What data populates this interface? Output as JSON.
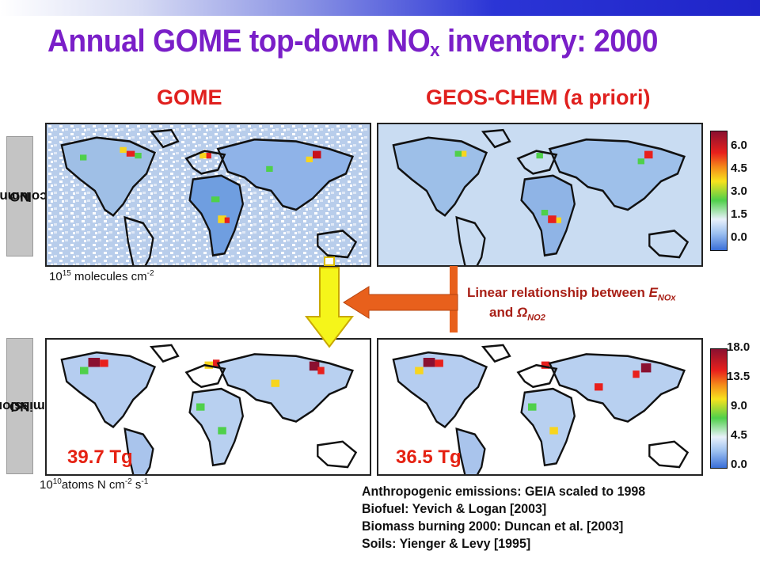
{
  "title": {
    "main": "Annual GOME top-down NO",
    "sub": "x",
    "rest": " inventory: 2000"
  },
  "columns": {
    "left": "GOME",
    "right": "GEOS-CHEM (a priori)"
  },
  "rows": {
    "top": {
      "pre": "NO",
      "sub": "2",
      "post": " columns"
    },
    "bottom": {
      "pre": "NO",
      "sub": "x",
      "post": " emissions"
    }
  },
  "units": {
    "top": {
      "base": "10",
      "exp": "15",
      "text": " molecules cm",
      "exp2": "-2"
    },
    "bottom": {
      "base": "10",
      "exp": "10",
      "text": "atoms N cm",
      "exp2": "-2",
      "text2": " s",
      "exp3": "-1"
    }
  },
  "totals": {
    "gome": "39.7 Tg",
    "geoschem": "36.5 Tg"
  },
  "colorbar_top": {
    "ticks": [
      "6.0",
      "4.5",
      "3.0",
      "1.5",
      "0.0"
    ]
  },
  "colorbar_bottom": {
    "ticks": [
      "18.0",
      "13.5",
      "9.0",
      "4.5",
      "0.0"
    ]
  },
  "annotation": {
    "line1": "Linear relationship between ",
    "E": "E",
    "Esub": "NOx",
    "line2": "and ",
    "omega": "Ω",
    "omegasub": "NO2"
  },
  "sources": [
    "Anthropogenic emissions: GEIA scaled to 1998",
    "Biofuel: Yevich & Logan [2003]",
    "Biomass burning 2000: Duncan et al. [2003]",
    "Soils: Yienger & Levy [1995]"
  ],
  "colors": {
    "title": "#7a1fc8",
    "headers": "#e0201e",
    "totals": "#e52213",
    "arrow_yellow": "#f5f51a",
    "arrow_orange": "#e8601c"
  }
}
